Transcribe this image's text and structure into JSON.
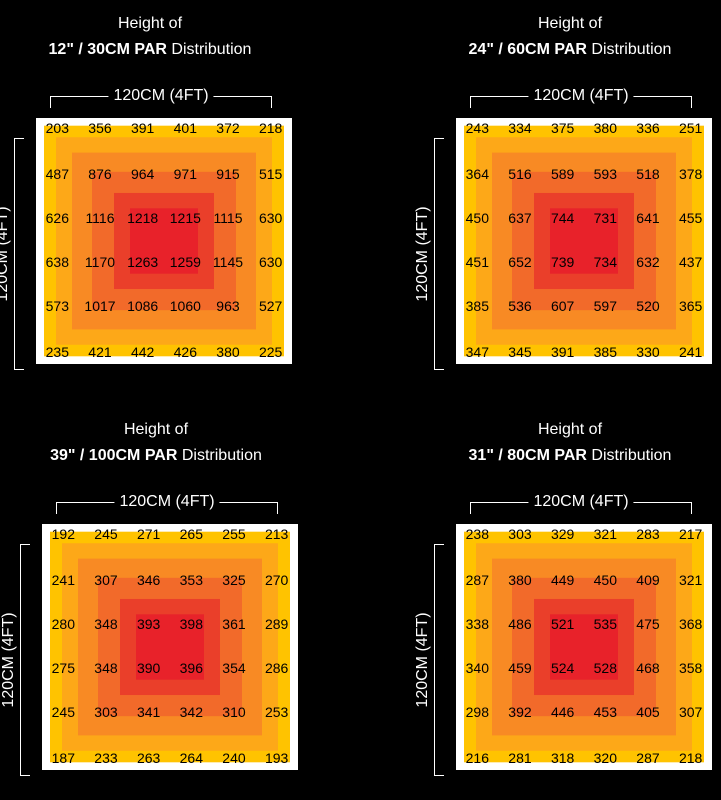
{
  "chart_data": [
    {
      "type": "heatmap",
      "title_line1": "Height of",
      "title_bold": "12\" / 30CM PAR",
      "title_suffix": "Distribution",
      "xlabel": "120CM (4FT)",
      "ylabel": "120CM (4FT)",
      "values": [
        [
          "203",
          "356",
          "391",
          "401",
          "372",
          "218"
        ],
        [
          "487",
          "876",
          "964",
          "971",
          "915",
          "515"
        ],
        [
          "626",
          "1116",
          "1218",
          "1215",
          "1115",
          "630"
        ],
        [
          "638",
          "1170",
          "1263",
          "1259",
          "1145",
          "630"
        ],
        [
          "573",
          "1017",
          "1086",
          "1060",
          "963",
          "527"
        ],
        [
          "235",
          "421",
          "442",
          "426",
          "380",
          "225"
        ]
      ]
    },
    {
      "type": "heatmap",
      "title_line1": "Height of",
      "title_bold": "24\" / 60CM PAR",
      "title_suffix": "Distribution",
      "xlabel": "120CM (4FT)",
      "ylabel": "120CM (4FT)",
      "values": [
        [
          "243",
          "334",
          "375",
          "380",
          "336",
          "251"
        ],
        [
          "364",
          "516",
          "589",
          "593",
          "518",
          "378"
        ],
        [
          "450",
          "637",
          "744",
          "731",
          "641",
          "455"
        ],
        [
          "451",
          "652",
          "739",
          "734",
          "632",
          "437"
        ],
        [
          "385",
          "536",
          "607",
          "597",
          "520",
          "365"
        ],
        [
          "347",
          "345",
          "391",
          "385",
          "330",
          "241"
        ]
      ]
    },
    {
      "type": "heatmap",
      "title_line1": "Height of",
      "title_bold": "39\" / 100CM PAR",
      "title_suffix": "Distribution",
      "xlabel": "120CM (4FT)",
      "ylabel": "120CM (4FT)",
      "values": [
        [
          "192",
          "245",
          "271",
          "265",
          "255",
          "213"
        ],
        [
          "241",
          "307",
          "346",
          "353",
          "325",
          "270"
        ],
        [
          "280",
          "348",
          "393",
          "398",
          "361",
          "289"
        ],
        [
          "275",
          "348",
          "390",
          "396",
          "354",
          "286"
        ],
        [
          "245",
          "303",
          "341",
          "342",
          "310",
          "253"
        ],
        [
          "187",
          "233",
          "263",
          "264",
          "240",
          "193"
        ]
      ]
    },
    {
      "type": "heatmap",
      "title_line1": "Height of",
      "title_bold": "31\" / 80CM PAR",
      "title_suffix": "Distribution",
      "xlabel": "120CM (4FT)",
      "ylabel": "120CM (4FT)",
      "values": [
        [
          "238",
          "303",
          "329",
          "321",
          "283",
          "217"
        ],
        [
          "287",
          "380",
          "449",
          "450",
          "409",
          "321"
        ],
        [
          "338",
          "486",
          "521",
          "535",
          "475",
          "368"
        ],
        [
          "340",
          "459",
          "524",
          "528",
          "468",
          "358"
        ],
        [
          "298",
          "392",
          "446",
          "453",
          "405",
          "307"
        ],
        [
          "216",
          "281",
          "318",
          "320",
          "287",
          "218"
        ]
      ]
    }
  ],
  "colors": {
    "background": "#000000",
    "outer_border": "#ffffff",
    "ring_1": "#ffc300",
    "ring_2": "#fda818",
    "ring_3": "#f88a24",
    "ring_4": "#f26a2a",
    "ring_5": "#ea3f2a",
    "core": "#e8222a"
  }
}
